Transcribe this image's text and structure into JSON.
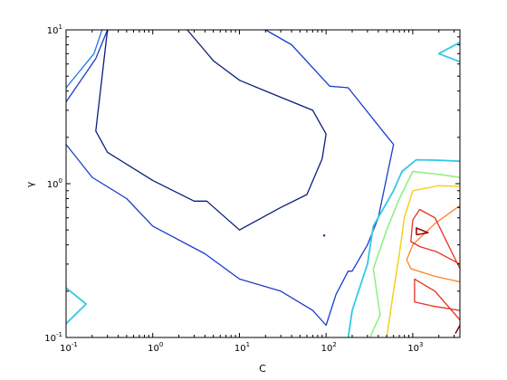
{
  "chart_data": {
    "type": "contour",
    "title": "",
    "xlabel": "C",
    "ylabel": "γ",
    "xscale": "log",
    "yscale": "log",
    "xlim": [
      0.1,
      3500
    ],
    "ylim": [
      0.1,
      10
    ],
    "xticks": [
      {
        "value": 0.1,
        "base": "10",
        "exp": "-1"
      },
      {
        "value": 1,
        "base": "10",
        "exp": "0"
      },
      {
        "value": 10,
        "base": "10",
        "exp": "1"
      },
      {
        "value": 100,
        "base": "10",
        "exp": "2"
      },
      {
        "value": 1000,
        "base": "10",
        "exp": "3"
      }
    ],
    "yticks": [
      {
        "value": 0.1,
        "base": "10",
        "exp": "-1"
      },
      {
        "value": 1,
        "base": "10",
        "exp": "0"
      },
      {
        "value": 10,
        "base": "10",
        "exp": "1"
      }
    ],
    "grid": false,
    "legend": "none",
    "contours": [
      {
        "color": "#0a1e7a",
        "width": 1.3,
        "lines": [
          [
            [
              0.3,
              10
            ],
            [
              0.22,
              2.2
            ],
            [
              0.3,
              1.6
            ],
            [
              1,
              1.05
            ],
            [
              3,
              0.77
            ],
            [
              4.2,
              0.77
            ],
            [
              10,
              0.5
            ],
            [
              30,
              0.7
            ],
            [
              60,
              0.85
            ],
            [
              90,
              1.45
            ],
            [
              100,
              2.1
            ],
            [
              70,
              3
            ],
            [
              20,
              4
            ],
            [
              10,
              4.7
            ],
            [
              5,
              6.3
            ],
            [
              3.5,
              8
            ],
            [
              2.5,
              10
            ]
          ]
        ]
      },
      {
        "color": "#1a3ec8",
        "width": 1.3,
        "lines": [
          [
            [
              0.1,
              3.4
            ],
            [
              0.22,
              6.5
            ],
            [
              0.3,
              10
            ]
          ],
          [
            [
              0.1,
              1.8
            ],
            [
              0.2,
              1.1
            ],
            [
              0.5,
              0.8
            ],
            [
              1,
              0.53
            ],
            [
              4,
              0.35
            ],
            [
              10,
              0.24
            ],
            [
              30,
              0.2
            ],
            [
              70,
              0.15
            ],
            [
              100,
              0.12
            ],
            [
              130,
              0.19
            ],
            [
              180,
              0.27
            ],
            [
              200,
              0.27
            ],
            [
              300,
              0.4
            ],
            [
              400,
              0.6
            ],
            [
              500,
              1.1
            ],
            [
              600,
              1.8
            ],
            [
              450,
              2.2
            ],
            [
              180,
              4.2
            ],
            [
              110,
              4.3
            ],
            [
              40,
              8
            ],
            [
              20,
              10
            ]
          ]
        ]
      },
      {
        "color": "#1e78e8",
        "width": 1.3,
        "lines": [
          [
            [
              0.1,
              4.2
            ],
            [
              0.21,
              7
            ],
            [
              0.26,
              10
            ]
          ]
        ]
      },
      {
        "color": "#33c8e6",
        "width": 1.8,
        "lines": [
          [
            [
              0.1,
              0.21
            ],
            [
              0.17,
              0.165
            ],
            [
              0.1,
              0.123
            ]
          ],
          [
            [
              3500,
              6.2
            ],
            [
              2000,
              7
            ],
            [
              3500,
              8.3
            ]
          ],
          [
            [
              3500,
              1.4
            ],
            [
              2000,
              1.42
            ],
            [
              1100,
              1.43
            ],
            [
              750,
              1.2
            ],
            [
              600,
              0.9
            ],
            [
              350,
              0.53
            ],
            [
              300,
              0.3
            ],
            [
              200,
              0.15
            ],
            [
              180,
              0.1
            ]
          ]
        ]
      },
      {
        "color": "#8af07e",
        "width": 1.5,
        "lines": [
          [
            [
              3500,
              1.1
            ],
            [
              2000,
              1.15
            ],
            [
              1000,
              1.2
            ],
            [
              700,
              0.8
            ],
            [
              500,
              0.5
            ],
            [
              350,
              0.28
            ],
            [
              420,
              0.14
            ],
            [
              320,
              0.1
            ]
          ]
        ]
      },
      {
        "color": "#f2d21e",
        "width": 1.5,
        "lines": [
          [
            [
              3500,
              0.96
            ],
            [
              2000,
              0.97
            ],
            [
              1000,
              0.9
            ],
            [
              800,
              0.6
            ],
            [
              700,
              0.35
            ],
            [
              600,
              0.2
            ],
            [
              500,
              0.1
            ]
          ]
        ]
      },
      {
        "color": "#ff7a1a",
        "width": 1.2,
        "lines": [
          [
            [
              3500,
              0.72
            ],
            [
              1800,
              0.55
            ],
            [
              1000,
              0.4
            ],
            [
              850,
              0.32
            ],
            [
              950,
              0.28
            ],
            [
              1800,
              0.25
            ],
            [
              3500,
              0.23
            ]
          ]
        ]
      },
      {
        "color": "#e83020",
        "width": 1.3,
        "lines": [
          [
            [
              3500,
              0.28
            ],
            [
              1800,
              0.6
            ],
            [
              1200,
              0.68
            ],
            [
              1000,
              0.58
            ],
            [
              950,
              0.42
            ],
            [
              1200,
              0.39
            ],
            [
              1900,
              0.36
            ],
            [
              3500,
              0.3
            ]
          ],
          [
            [
              3500,
              0.13
            ],
            [
              1800,
              0.2
            ],
            [
              1050,
              0.24
            ],
            [
              1050,
              0.17
            ],
            [
              1700,
              0.16
            ],
            [
              3500,
              0.15
            ]
          ]
        ]
      },
      {
        "color": "#a00a0a",
        "width": 1.6,
        "lines": [
          [
            [
              1100,
              0.465
            ],
            [
              1500,
              0.48
            ],
            [
              1100,
              0.515
            ],
            [
              1100,
              0.465
            ]
          ]
        ]
      },
      {
        "color": "#800000",
        "width": 1.4,
        "lines": [
          [
            [
              3500,
              0.12
            ],
            [
              3100,
              0.106
            ]
          ]
        ]
      }
    ],
    "points": [
      {
        "x": 95,
        "y": 0.46,
        "color": "#0a1e7a"
      }
    ]
  }
}
